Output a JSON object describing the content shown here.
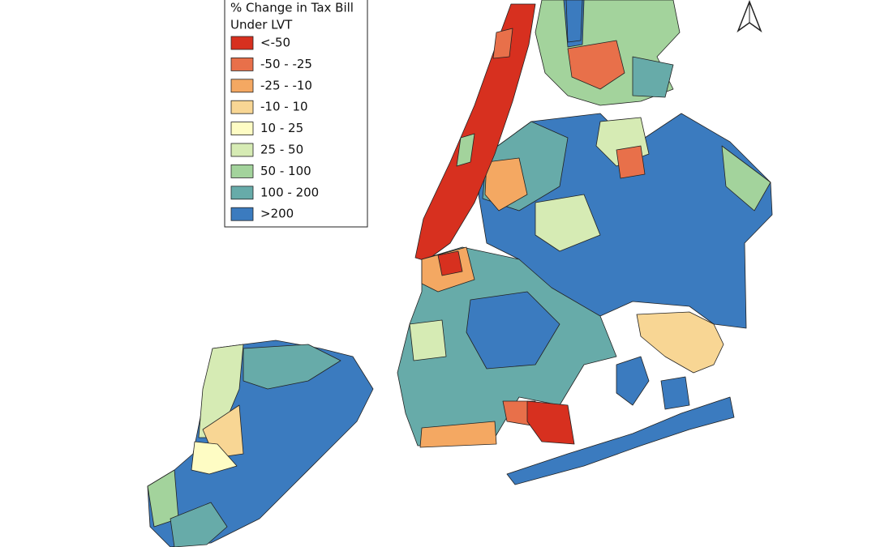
{
  "legend": {
    "title_lines": [
      "% Change in Tax Bill",
      "Under LVT"
    ],
    "items": [
      {
        "label": "<-50",
        "color": "#d7301f"
      },
      {
        "label": "-50 - -25",
        "color": "#e8704a"
      },
      {
        "label": "-25 - -10",
        "color": "#f4a862"
      },
      {
        "label": "-10 - 10",
        "color": "#f8d694"
      },
      {
        "label": "10 - 25",
        "color": "#fefcc4"
      },
      {
        "label": "25 - 50",
        "color": "#d6ebb4"
      },
      {
        "label": "50 - 100",
        "color": "#a3d39c"
      },
      {
        "label": "100 - 200",
        "color": "#67aba9"
      },
      {
        "label": ">200",
        "color": "#3b7bbf"
      }
    ]
  }
}
